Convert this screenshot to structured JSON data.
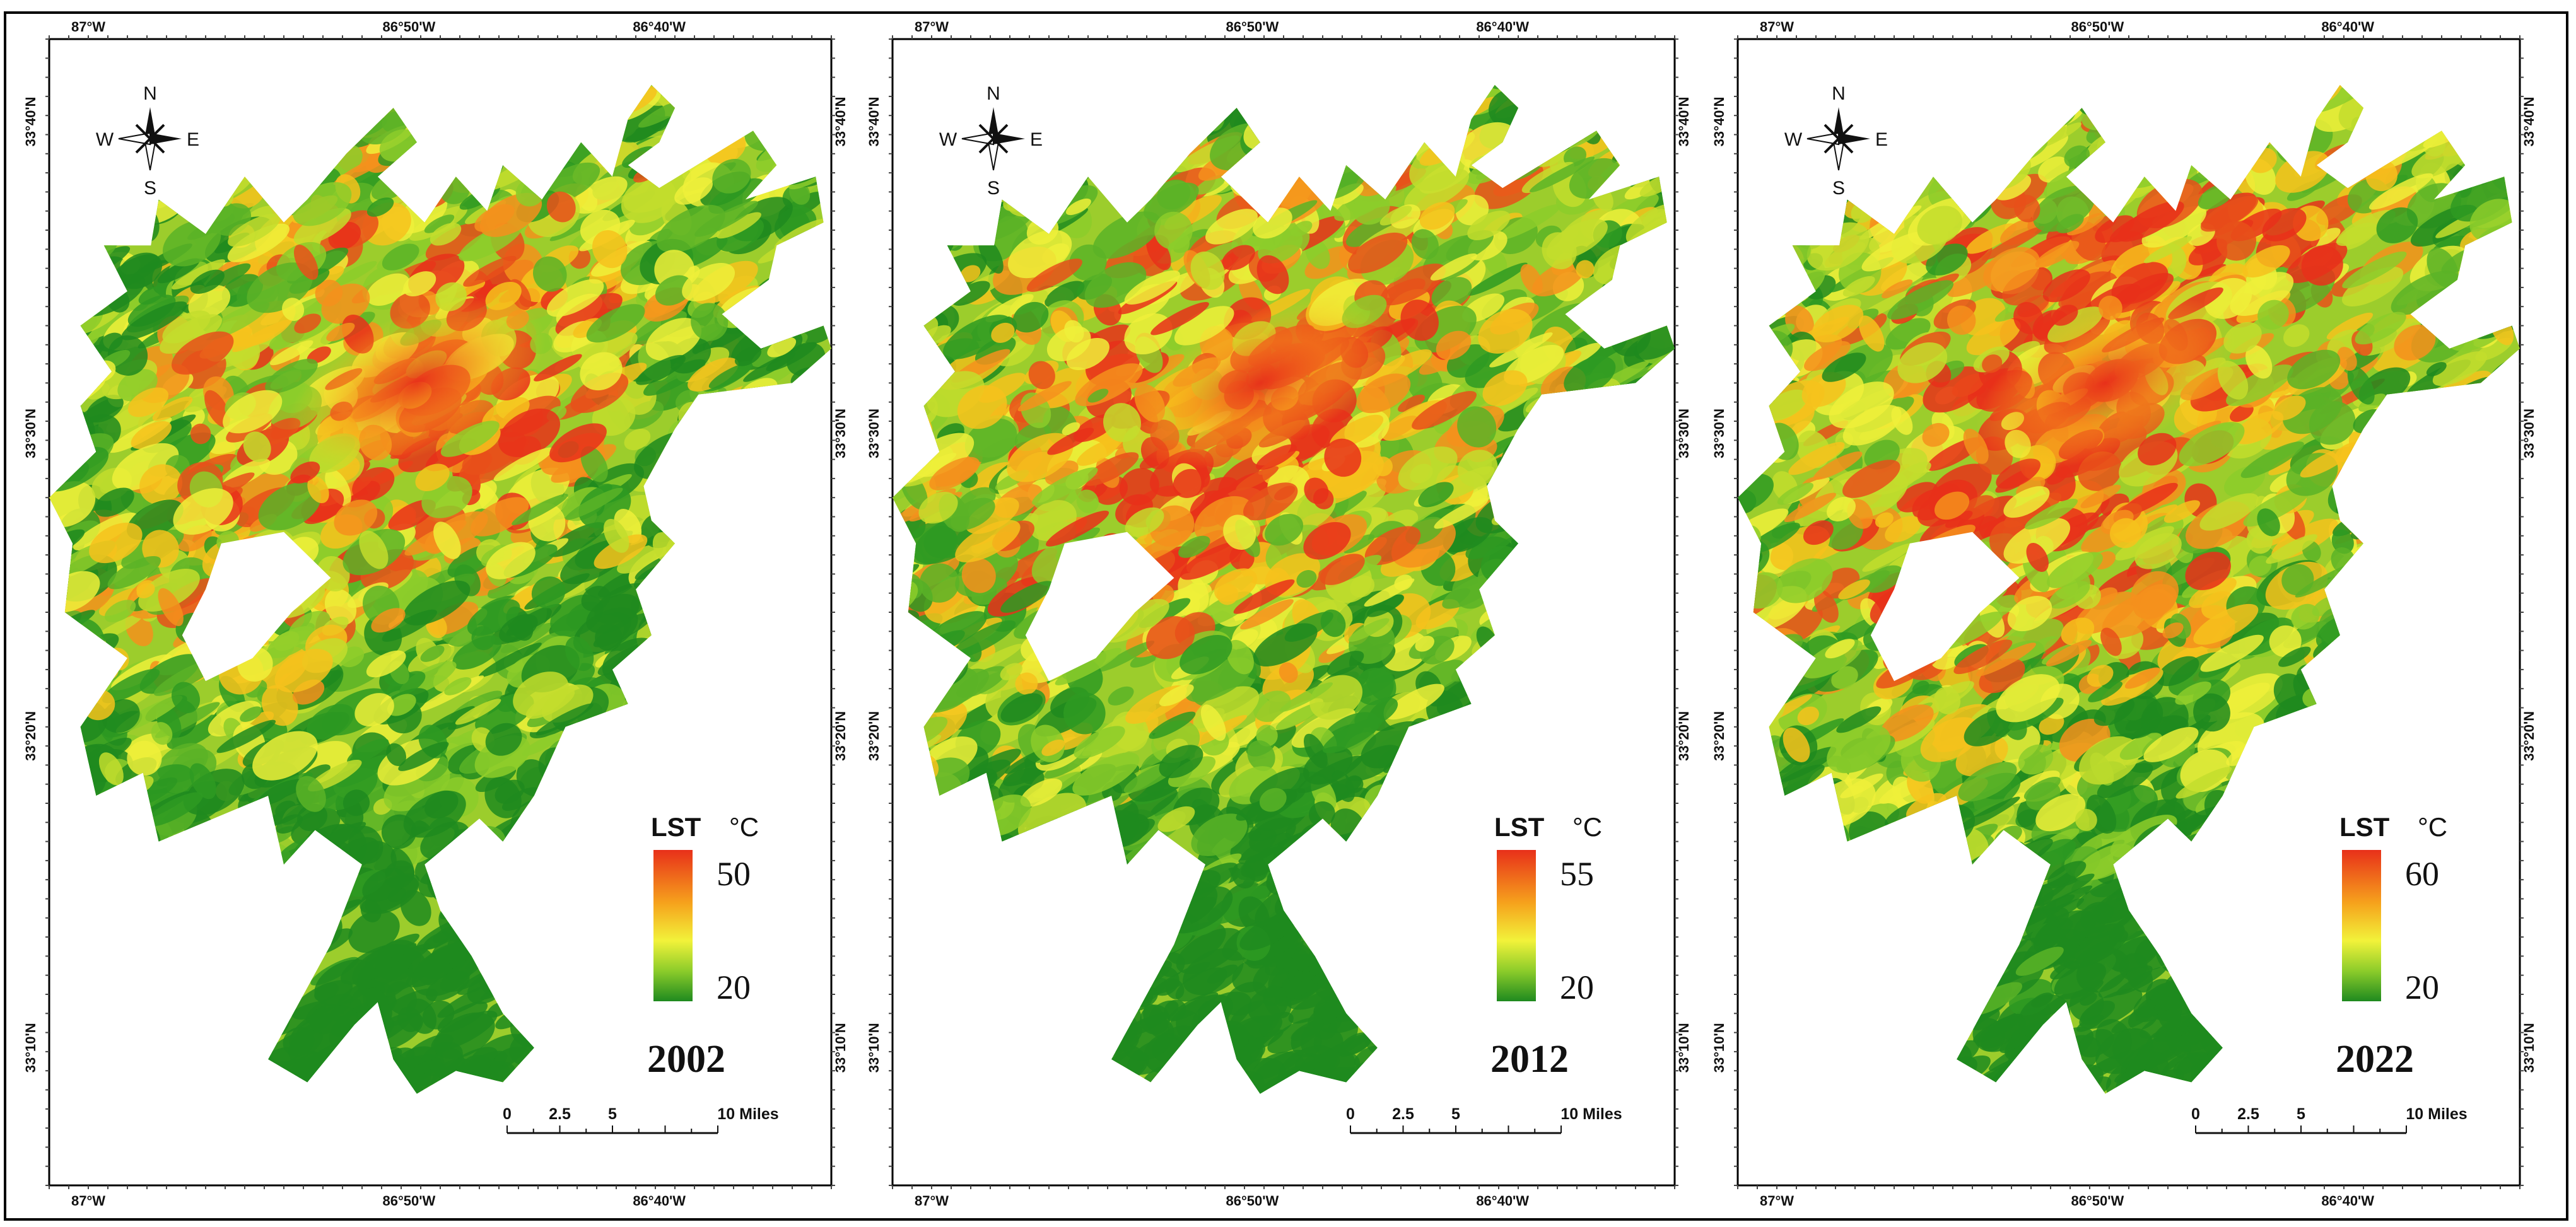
{
  "panels": [
    {
      "year": "2002",
      "legend": {
        "title": "LST",
        "unit": "°C",
        "max": "50",
        "min": "20"
      },
      "top_ticks": [
        "87°W",
        "86°50'W",
        "86°40'W"
      ],
      "bottom_ticks": [
        "87°W",
        "86°50'W",
        "86°40'W"
      ],
      "left_ticks": [
        "33°40'N",
        "33°30'N",
        "33°20'N",
        "33°10'N"
      ],
      "right_ticks": [
        "33°40'N",
        "33°30'N",
        "33°20'N",
        "33°10'N"
      ]
    },
    {
      "year": "2012",
      "legend": {
        "title": "LST",
        "unit": "°C",
        "max": "55",
        "min": "20"
      },
      "top_ticks": [
        "87°W",
        "86°50'W",
        "86°40'W"
      ],
      "bottom_ticks": [
        "87°W",
        "86°50'W",
        "86°40'W"
      ],
      "left_ticks": [
        "33°40'N",
        "33°30'N",
        "33°20'N",
        "33°10'N"
      ],
      "right_ticks": [
        "33°40'N",
        "33°30'N",
        "33°20'N",
        "33°10'N"
      ]
    },
    {
      "year": "2022",
      "legend": {
        "title": "LST",
        "unit": "°C",
        "max": "60",
        "min": "20"
      },
      "top_ticks": [
        "87°W",
        "86°50'W",
        "86°40'W"
      ],
      "bottom_ticks": [
        "87°W",
        "86°50'W",
        "86°40'W"
      ],
      "left_ticks": [
        "33°40'N",
        "33°30'N",
        "33°20'N",
        "33°10'N"
      ],
      "right_ticks": [
        "33°40'N",
        "33°30'N",
        "33°20'N",
        "33°10'N"
      ]
    }
  ],
  "north_arrow": {
    "n": "N",
    "s": "S",
    "e": "E",
    "w": "W"
  },
  "scale_bar": {
    "labels": [
      "0",
      "2.5",
      "5",
      "10 Miles"
    ]
  },
  "colors": {
    "low": "#1f8a1f",
    "mid": "#f2f23a",
    "high": "#e8301a",
    "frame": "#000000"
  }
}
